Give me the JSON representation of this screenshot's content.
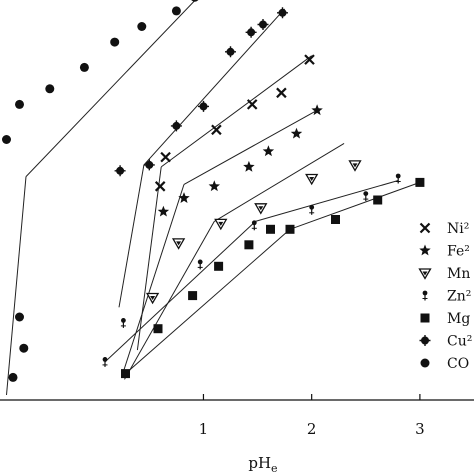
{
  "chart_data": {
    "type": "scatter",
    "title": "",
    "xlabel": "pH",
    "xlabel_subscript": "e",
    "ylabel": "",
    "xlim": [
      -0.88,
      3.5
    ],
    "ylim": [
      0,
      1
    ],
    "x_ticks": [
      {
        "value": 1,
        "label": "1"
      },
      {
        "value": 2,
        "label": "2"
      },
      {
        "value": 3,
        "label": "3"
      }
    ],
    "grid": false,
    "legend_position": "right",
    "series": [
      {
        "name": "Ni²",
        "marker": "x",
        "color": "#111111",
        "points": [
          [
            0.6,
            0.535
          ],
          [
            0.65,
            0.61
          ],
          [
            1.12,
            0.68
          ],
          [
            1.45,
            0.745
          ],
          [
            1.72,
            0.775
          ],
          [
            1.98,
            0.86
          ]
        ],
        "fit": [
          [
            [
              0.39,
              0.115
            ],
            [
              0.61,
              0.585
            ]
          ],
          [
            [
              0.61,
              0.585
            ],
            [
              2.0,
              0.87
            ]
          ]
        ]
      },
      {
        "name": "Fe²",
        "marker": "star",
        "color": "#111111",
        "points": [
          [
            0.63,
            0.47
          ],
          [
            0.82,
            0.505
          ],
          [
            1.1,
            0.535
          ],
          [
            1.42,
            0.585
          ],
          [
            1.6,
            0.625
          ],
          [
            1.86,
            0.67
          ],
          [
            2.05,
            0.73
          ]
        ],
        "fit": [
          [
            [
              0.26,
              0.06
            ],
            [
              0.82,
              0.54
            ]
          ],
          [
            [
              0.82,
              0.54
            ],
            [
              2.05,
              0.73
            ]
          ]
        ]
      },
      {
        "name": "Mn",
        "marker": "triangle-down",
        "color": "#111111",
        "points": [
          [
            0.53,
            0.25
          ],
          [
            0.77,
            0.39
          ],
          [
            1.16,
            0.44
          ],
          [
            1.53,
            0.48
          ],
          [
            2.0,
            0.555
          ],
          [
            2.4,
            0.59
          ]
        ],
        "fit": [
          [
            [
              0.27,
              0.04
            ],
            [
              1.1,
              0.445
            ]
          ],
          [
            [
              1.1,
              0.445
            ],
            [
              2.3,
              0.645
            ]
          ]
        ]
      },
      {
        "name": "Zn²",
        "marker": "pin",
        "color": "#111111",
        "points": [
          [
            0.09,
            0.085
          ],
          [
            0.26,
            0.185
          ],
          [
            0.97,
            0.335
          ],
          [
            1.47,
            0.435
          ],
          [
            2.0,
            0.475
          ],
          [
            2.5,
            0.51
          ],
          [
            2.8,
            0.555
          ]
        ],
        "fit": [
          [
            [
              0.09,
              0.085
            ],
            [
              1.48,
              0.445
            ]
          ],
          [
            [
              1.48,
              0.445
            ],
            [
              2.8,
              0.55
            ]
          ]
        ]
      },
      {
        "name": "Mg",
        "marker": "square",
        "color": "#111111",
        "points": [
          [
            0.28,
            0.055
          ],
          [
            0.58,
            0.17
          ],
          [
            0.9,
            0.255
          ],
          [
            1.14,
            0.33
          ],
          [
            1.42,
            0.385
          ],
          [
            1.62,
            0.425
          ],
          [
            1.8,
            0.425
          ],
          [
            2.22,
            0.45
          ],
          [
            2.61,
            0.5
          ],
          [
            3.0,
            0.545
          ]
        ],
        "fit": [
          [
            [
              0.28,
              0.055
            ],
            [
              1.8,
              0.425
            ]
          ],
          [
            [
              1.8,
              0.425
            ],
            [
              3.0,
              0.545
            ]
          ]
        ]
      },
      {
        "name": "Cu²",
        "marker": "plus-dot",
        "color": "#111111",
        "points": [
          [
            0.23,
            0.575
          ],
          [
            0.5,
            0.59
          ],
          [
            0.75,
            0.69
          ],
          [
            1.0,
            0.74
          ],
          [
            1.25,
            0.88
          ],
          [
            1.44,
            0.93
          ],
          [
            1.55,
            0.95
          ],
          [
            1.73,
            0.98
          ]
        ],
        "fit": [
          [
            [
              0.22,
              0.225
            ],
            [
              0.45,
              0.59
            ]
          ],
          [
            [
              0.45,
              0.59
            ],
            [
              1.75,
              0.99
            ]
          ]
        ]
      },
      {
        "name": "CO",
        "marker": "circle",
        "color": "#111111",
        "points": [
          [
            -0.76,
            0.045
          ],
          [
            -0.66,
            0.12
          ],
          [
            -0.7,
            0.2
          ],
          [
            -0.82,
            0.655
          ],
          [
            -0.7,
            0.745
          ],
          [
            -0.42,
            0.785
          ],
          [
            -0.1,
            0.84
          ],
          [
            0.18,
            0.905
          ],
          [
            0.43,
            0.945
          ],
          [
            0.75,
            0.985
          ],
          [
            0.92,
            1.02
          ]
        ],
        "fit": [
          [
            [
              -0.82,
              0.0
            ],
            [
              -0.64,
              0.56
            ]
          ],
          [
            [
              -0.64,
              0.56
            ],
            [
              0.95,
              1.02
            ]
          ]
        ]
      }
    ],
    "legend": [
      {
        "name": "Ni²",
        "marker": "x"
      },
      {
        "name": "Fe²",
        "marker": "star"
      },
      {
        "name": "Mn",
        "marker": "triangle-down"
      },
      {
        "name": "Zn²",
        "marker": "pin"
      },
      {
        "name": "Mg",
        "marker": "square"
      },
      {
        "name": "Cu²",
        "marker": "plus-dot"
      },
      {
        "name": "CO",
        "marker": "circle"
      }
    ]
  }
}
